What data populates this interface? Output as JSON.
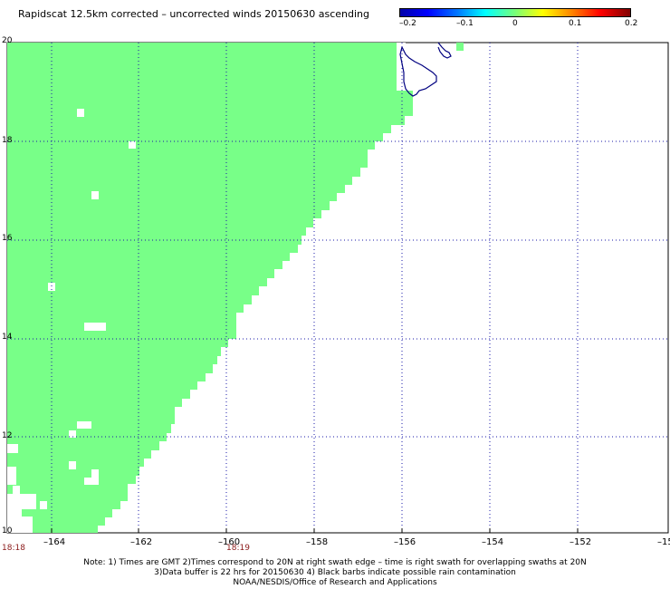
{
  "title": "Rapidscat 12.5km corrected – uncorrected winds 20150630 ascending",
  "colorbar": {
    "ticks": [
      "–0.2",
      "–0.1",
      "0",
      "0.1",
      "0.2"
    ],
    "range": [
      -0.2,
      0.2
    ],
    "colors": [
      "#0000a8",
      "#0000ff",
      "#0078ff",
      "#00ffff",
      "#78ff78",
      "#ffff00",
      "#ff8000",
      "#ff0000",
      "#800000"
    ]
  },
  "map": {
    "lon_range": [
      -165,
      -150
    ],
    "lat_range": [
      10,
      20
    ],
    "lat_labels": [
      "20",
      "18",
      "16",
      "14",
      "12",
      "10"
    ],
    "lon_labels": [
      "–164",
      "–162",
      "–160",
      "–158",
      "–156",
      "–154",
      "–152",
      "–15"
    ],
    "grid_style": "dotted blue",
    "swath_fill_color": "#78ff88",
    "coastline_color": "#000080"
  },
  "time_labels": [
    "18:18",
    "18:19"
  ],
  "notes": [
    "Note: 1) Times are GMT 2)Times correspond to 20N at right swath edge – time is right swath for overlapping swaths at 20N",
    "3)Data buffer is 22 hrs for 20150630 4) Black barbs indicate possible rain contamination",
    "NOAA/NESDIS/Office of Research and Applications"
  ]
}
